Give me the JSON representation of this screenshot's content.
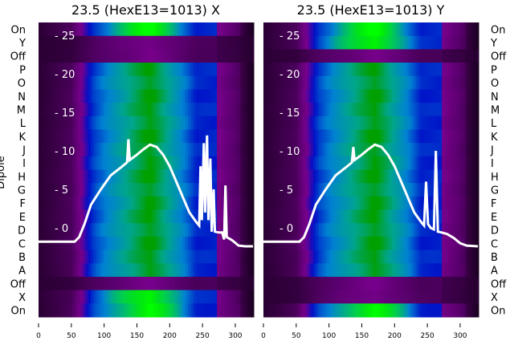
{
  "chart_data": {
    "type": "heatmap",
    "ylabel": "Dipole",
    "row_labels": [
      "On",
      "Y",
      "Off",
      "P",
      "O",
      "N",
      "M",
      "L",
      "K",
      "J",
      "I",
      "H",
      "G",
      "F",
      "E",
      "D",
      "C",
      "B",
      "A",
      "Off",
      "X",
      "On"
    ],
    "x_ticks": [
      0,
      50,
      100,
      150,
      200,
      250,
      300
    ],
    "y_ticks": [
      0,
      5,
      10,
      15,
      20,
      25
    ],
    "xlim": [
      0,
      327
    ],
    "ylim": [
      -5,
      26
    ],
    "panels": [
      {
        "title": "23.5 (HexE13=1013) X",
        "bright_rows": [
          0,
          20,
          21
        ],
        "dark_rows": [
          1,
          2,
          19
        ],
        "line": [
          [
            0,
            -1.8
          ],
          [
            55,
            -1.8
          ],
          [
            62,
            -1.2
          ],
          [
            70,
            0.5
          ],
          [
            80,
            3
          ],
          [
            95,
            5
          ],
          [
            110,
            6.8
          ],
          [
            125,
            7.8
          ],
          [
            135,
            8.5
          ],
          [
            137,
            11.5
          ],
          [
            139,
            8.8
          ],
          [
            150,
            9.5
          ],
          [
            160,
            10.2
          ],
          [
            170,
            10.8
          ],
          [
            180,
            10.5
          ],
          [
            190,
            9.5
          ],
          [
            200,
            8
          ],
          [
            210,
            6
          ],
          [
            220,
            4
          ],
          [
            230,
            2
          ],
          [
            240,
            0.8
          ],
          [
            245,
            0.3
          ],
          [
            247,
            8
          ],
          [
            249,
            1
          ],
          [
            252,
            11
          ],
          [
            254,
            2
          ],
          [
            257,
            12
          ],
          [
            259,
            1
          ],
          [
            262,
            9
          ],
          [
            264,
            -0.5
          ],
          [
            267,
            5
          ],
          [
            269,
            -0.5
          ],
          [
            275,
            -0.6
          ],
          [
            280,
            -0.6
          ],
          [
            283,
            -1.5
          ],
          [
            285,
            5.5
          ],
          [
            287,
            -1.2
          ],
          [
            295,
            -1.6
          ],
          [
            305,
            -2.3
          ],
          [
            315,
            -2.4
          ],
          [
            327,
            -2.4
          ]
        ]
      },
      {
        "title": "23.5 (HexE13=1013) Y",
        "bright_rows": [
          0,
          1,
          21
        ],
        "dark_rows": [
          2,
          19,
          20
        ],
        "line": [
          [
            0,
            -1.8
          ],
          [
            55,
            -1.8
          ],
          [
            62,
            -1.2
          ],
          [
            70,
            0.5
          ],
          [
            80,
            3
          ],
          [
            95,
            5
          ],
          [
            110,
            6.8
          ],
          [
            125,
            7.8
          ],
          [
            135,
            8.5
          ],
          [
            137,
            10.5
          ],
          [
            139,
            8.8
          ],
          [
            150,
            9.5
          ],
          [
            160,
            10.2
          ],
          [
            170,
            10.8
          ],
          [
            180,
            10.5
          ],
          [
            190,
            9.5
          ],
          [
            200,
            8
          ],
          [
            210,
            6
          ],
          [
            220,
            4
          ],
          [
            230,
            2
          ],
          [
            240,
            0.8
          ],
          [
            245,
            0.3
          ],
          [
            248,
            6
          ],
          [
            251,
            0.5
          ],
          [
            255,
            0
          ],
          [
            260,
            -0.2
          ],
          [
            263,
            10
          ],
          [
            266,
            -0.5
          ],
          [
            272,
            -0.6
          ],
          [
            280,
            -0.8
          ],
          [
            290,
            -1.3
          ],
          [
            300,
            -2
          ],
          [
            310,
            -2.3
          ],
          [
            327,
            -2.4
          ]
        ]
      }
    ]
  }
}
